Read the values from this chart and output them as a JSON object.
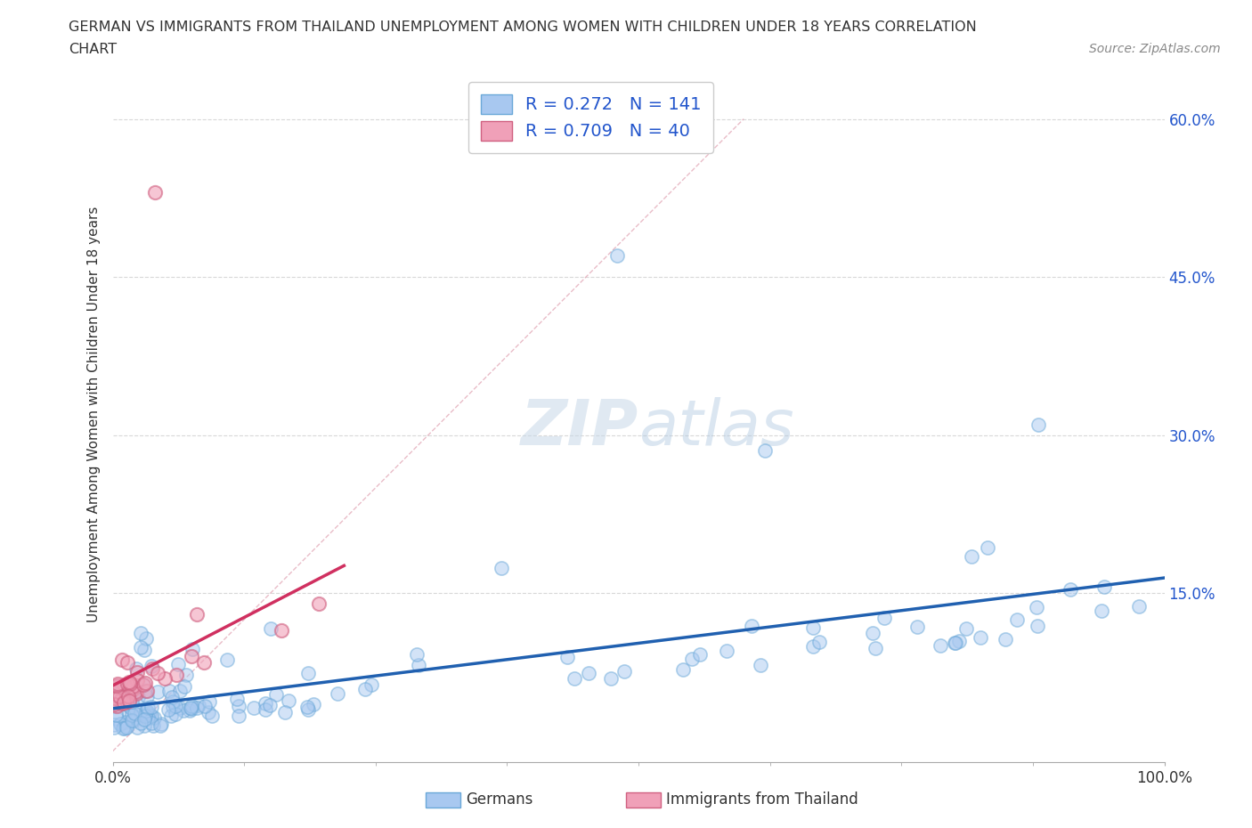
{
  "title_line1": "GERMAN VS IMMIGRANTS FROM THAILAND UNEMPLOYMENT AMONG WOMEN WITH CHILDREN UNDER 18 YEARS CORRELATION",
  "title_line2": "CHART",
  "source": "Source: ZipAtlas.com",
  "ylabel": "Unemployment Among Women with Children Under 18 years",
  "xlim": [
    0.0,
    1.0
  ],
  "ylim": [
    -0.01,
    0.65
  ],
  "german_R": 0.272,
  "german_N": 141,
  "thai_R": 0.709,
  "thai_N": 40,
  "german_color": "#a8c8f0",
  "german_edge_color": "#6aa8d8",
  "thai_color": "#f0a0b8",
  "thai_edge_color": "#d06080",
  "german_line_color": "#2060b0",
  "thai_line_color": "#d03060",
  "diag_line_color": "#e0a0b0",
  "watermark_color": "#d8e8f8",
  "background_color": "#ffffff",
  "grid_color": "#d8d8d8",
  "legend_text_color": "#2255cc",
  "tick_color": "#2255cc",
  "title_color": "#333333",
  "source_color": "#888888",
  "axis_label_color": "#333333"
}
